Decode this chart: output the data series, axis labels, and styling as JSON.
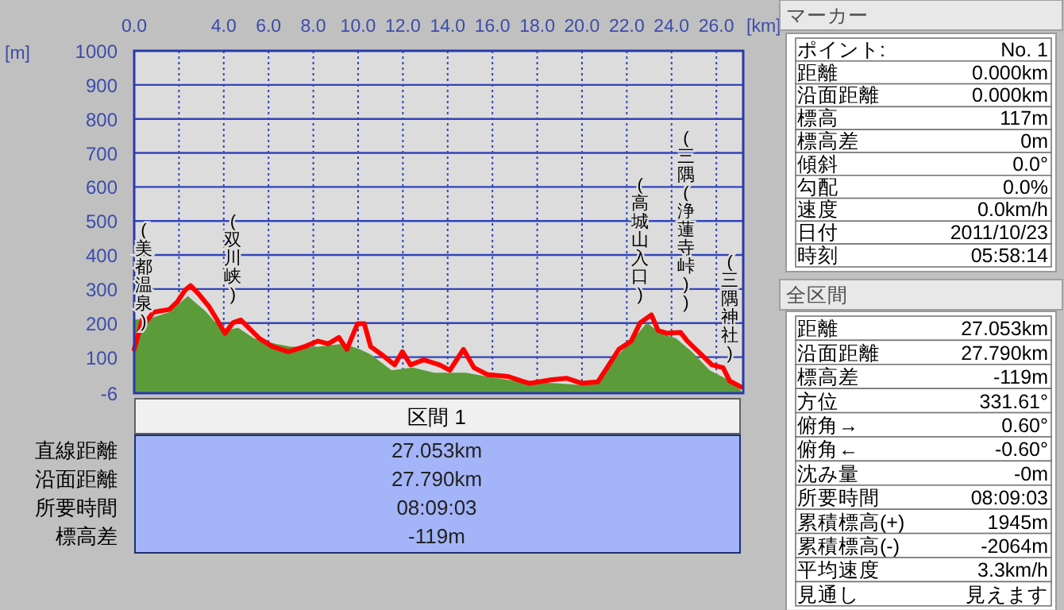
{
  "chart_data": [
    {
      "type": "area",
      "xlabel": "[km]",
      "ylabel": "[m]",
      "xlim": [
        0,
        27.2
      ],
      "ylim": [
        -6,
        1000
      ],
      "xticks": [
        {
          "value": 0,
          "label": "0.0"
        },
        {
          "value": 2,
          "label": null
        },
        {
          "value": 4,
          "label": "4.0"
        },
        {
          "value": 6,
          "label": "6.0"
        },
        {
          "value": 8,
          "label": "8.0"
        },
        {
          "value": 10,
          "label": "10.0"
        },
        {
          "value": 12,
          "label": "12.0"
        },
        {
          "value": 14,
          "label": "14.0"
        },
        {
          "value": 16,
          "label": "16.0"
        },
        {
          "value": 18,
          "label": "18.0"
        },
        {
          "value": 20,
          "label": "20.0"
        },
        {
          "value": 22,
          "label": "22.0"
        },
        {
          "value": 24,
          "label": "24.0"
        },
        {
          "value": 26,
          "label": "26.0"
        }
      ],
      "yticks": [
        -6,
        100,
        200,
        300,
        400,
        500,
        600,
        700,
        800,
        900,
        1000
      ],
      "grid": true,
      "series": [
        {
          "type": "area",
          "color": "#5b9b3a",
          "x": [
            0,
            0.86,
            1.57,
            2.4,
            3.23,
            3.94,
            4.65,
            5.35,
            6.3,
            7.0,
            8.19,
            9.37,
            10.08,
            10.56,
            11.5,
            12.45,
            13.4,
            14.1,
            14.8,
            15.76,
            16.7,
            17.65,
            18.8,
            20.0,
            20.7,
            21.4,
            22.1,
            22.9,
            23.5,
            24.2,
            24.9,
            25.7,
            26.4,
            27.1
          ],
          "values": [
            209,
            217,
            232,
            279,
            232,
            178,
            186,
            155,
            139,
            131,
            131,
            139,
            123,
            108,
            61,
            69,
            54,
            54,
            54,
            43,
            33,
            27,
            23,
            18,
            23,
            92,
            139,
            201,
            170,
            155,
            116,
            61,
            38,
            2
          ]
        },
        {
          "type": "line",
          "color": "#ff0000",
          "x": [
            0,
            0.2,
            0.39,
            0.5,
            0.86,
            1.57,
            1.93,
            2.28,
            2.52,
            2.87,
            3.35,
            3.7,
            4.06,
            4.41,
            4.76,
            5.12,
            5.59,
            6.18,
            6.89,
            7.6,
            8.19,
            8.67,
            9.14,
            9.5,
            9.97,
            10.28,
            10.56,
            11.04,
            11.63,
            11.98,
            12.34,
            12.93,
            13.64,
            14.1,
            14.7,
            15.17,
            15.76,
            16.7,
            17.3,
            17.65,
            18.6,
            19.3,
            20.0,
            20.7,
            21.2,
            21.65,
            22.2,
            22.6,
            23.1,
            23.4,
            23.8,
            24.4,
            24.7,
            25.45,
            25.8,
            26.3,
            26.6,
            27.1
          ],
          "values": [
            123,
            170,
            217,
            201,
            232,
            240,
            263,
            297,
            310,
            286,
            248,
            209,
            170,
            201,
            209,
            186,
            155,
            131,
            116,
            131,
            147,
            139,
            158,
            123,
            198,
            198,
            131,
            108,
            77,
            116,
            77,
            92,
            77,
            61,
            123,
            69,
            49,
            43,
            30,
            23,
            33,
            38,
            23,
            27,
            77,
            123,
            147,
            201,
            224,
            178,
            170,
            173,
            147,
            100,
            77,
            69,
            30,
            12
          ]
        }
      ],
      "annotations": [
        {
          "text": "(美都温泉)",
          "x": 0,
          "y": 123
        },
        {
          "text": "(双川峡)",
          "x": 4.41,
          "y": 201
        },
        {
          "text": "(高城山入口)",
          "x": 22.6,
          "y": 201
        },
        "(三隅(浄蓮寺峠))",
        {
          "text": "(三隅神社)",
          "x": 26.6,
          "y": 30
        }
      ]
    },
    {
      "type": "other",
      "title": "マーカー",
      "annotations": [
        "ポイント:",
        "No. 1",
        "距離",
        "0.000km",
        "沿面距離",
        "0.000km",
        "標高",
        "117m",
        "標高差",
        "0m",
        "傾斜",
        "0.0°",
        "勾配",
        "0.0%",
        "速度",
        "0.0km/h",
        "日付",
        "2011/10/23",
        "時刻",
        "05:58:14"
      ]
    },
    {
      "type": "other",
      "title": "全区間",
      "annotations": [
        "距離",
        "27.053km",
        "沿面距離",
        "27.790km",
        "標高差",
        "-119m",
        "方位",
        "331.61°",
        "俯角→",
        "0.60°",
        "俯角←",
        "-0.60°",
        "沈み量",
        "-0m",
        "所要時間",
        "08:09:03",
        "累積標高(+)",
        "1945m",
        "累積標高(-)",
        "-2064m",
        "平均速度",
        "3.3km/h",
        "見通し",
        "見えます"
      ]
    },
    {
      "type": "other",
      "title": "区間 1",
      "annotations": [
        "直線距離",
        "27.053km",
        "沿面距離",
        "27.790km",
        "所要時間",
        "08:09:03",
        "標高差",
        "-119m"
      ]
    }
  ]
}
